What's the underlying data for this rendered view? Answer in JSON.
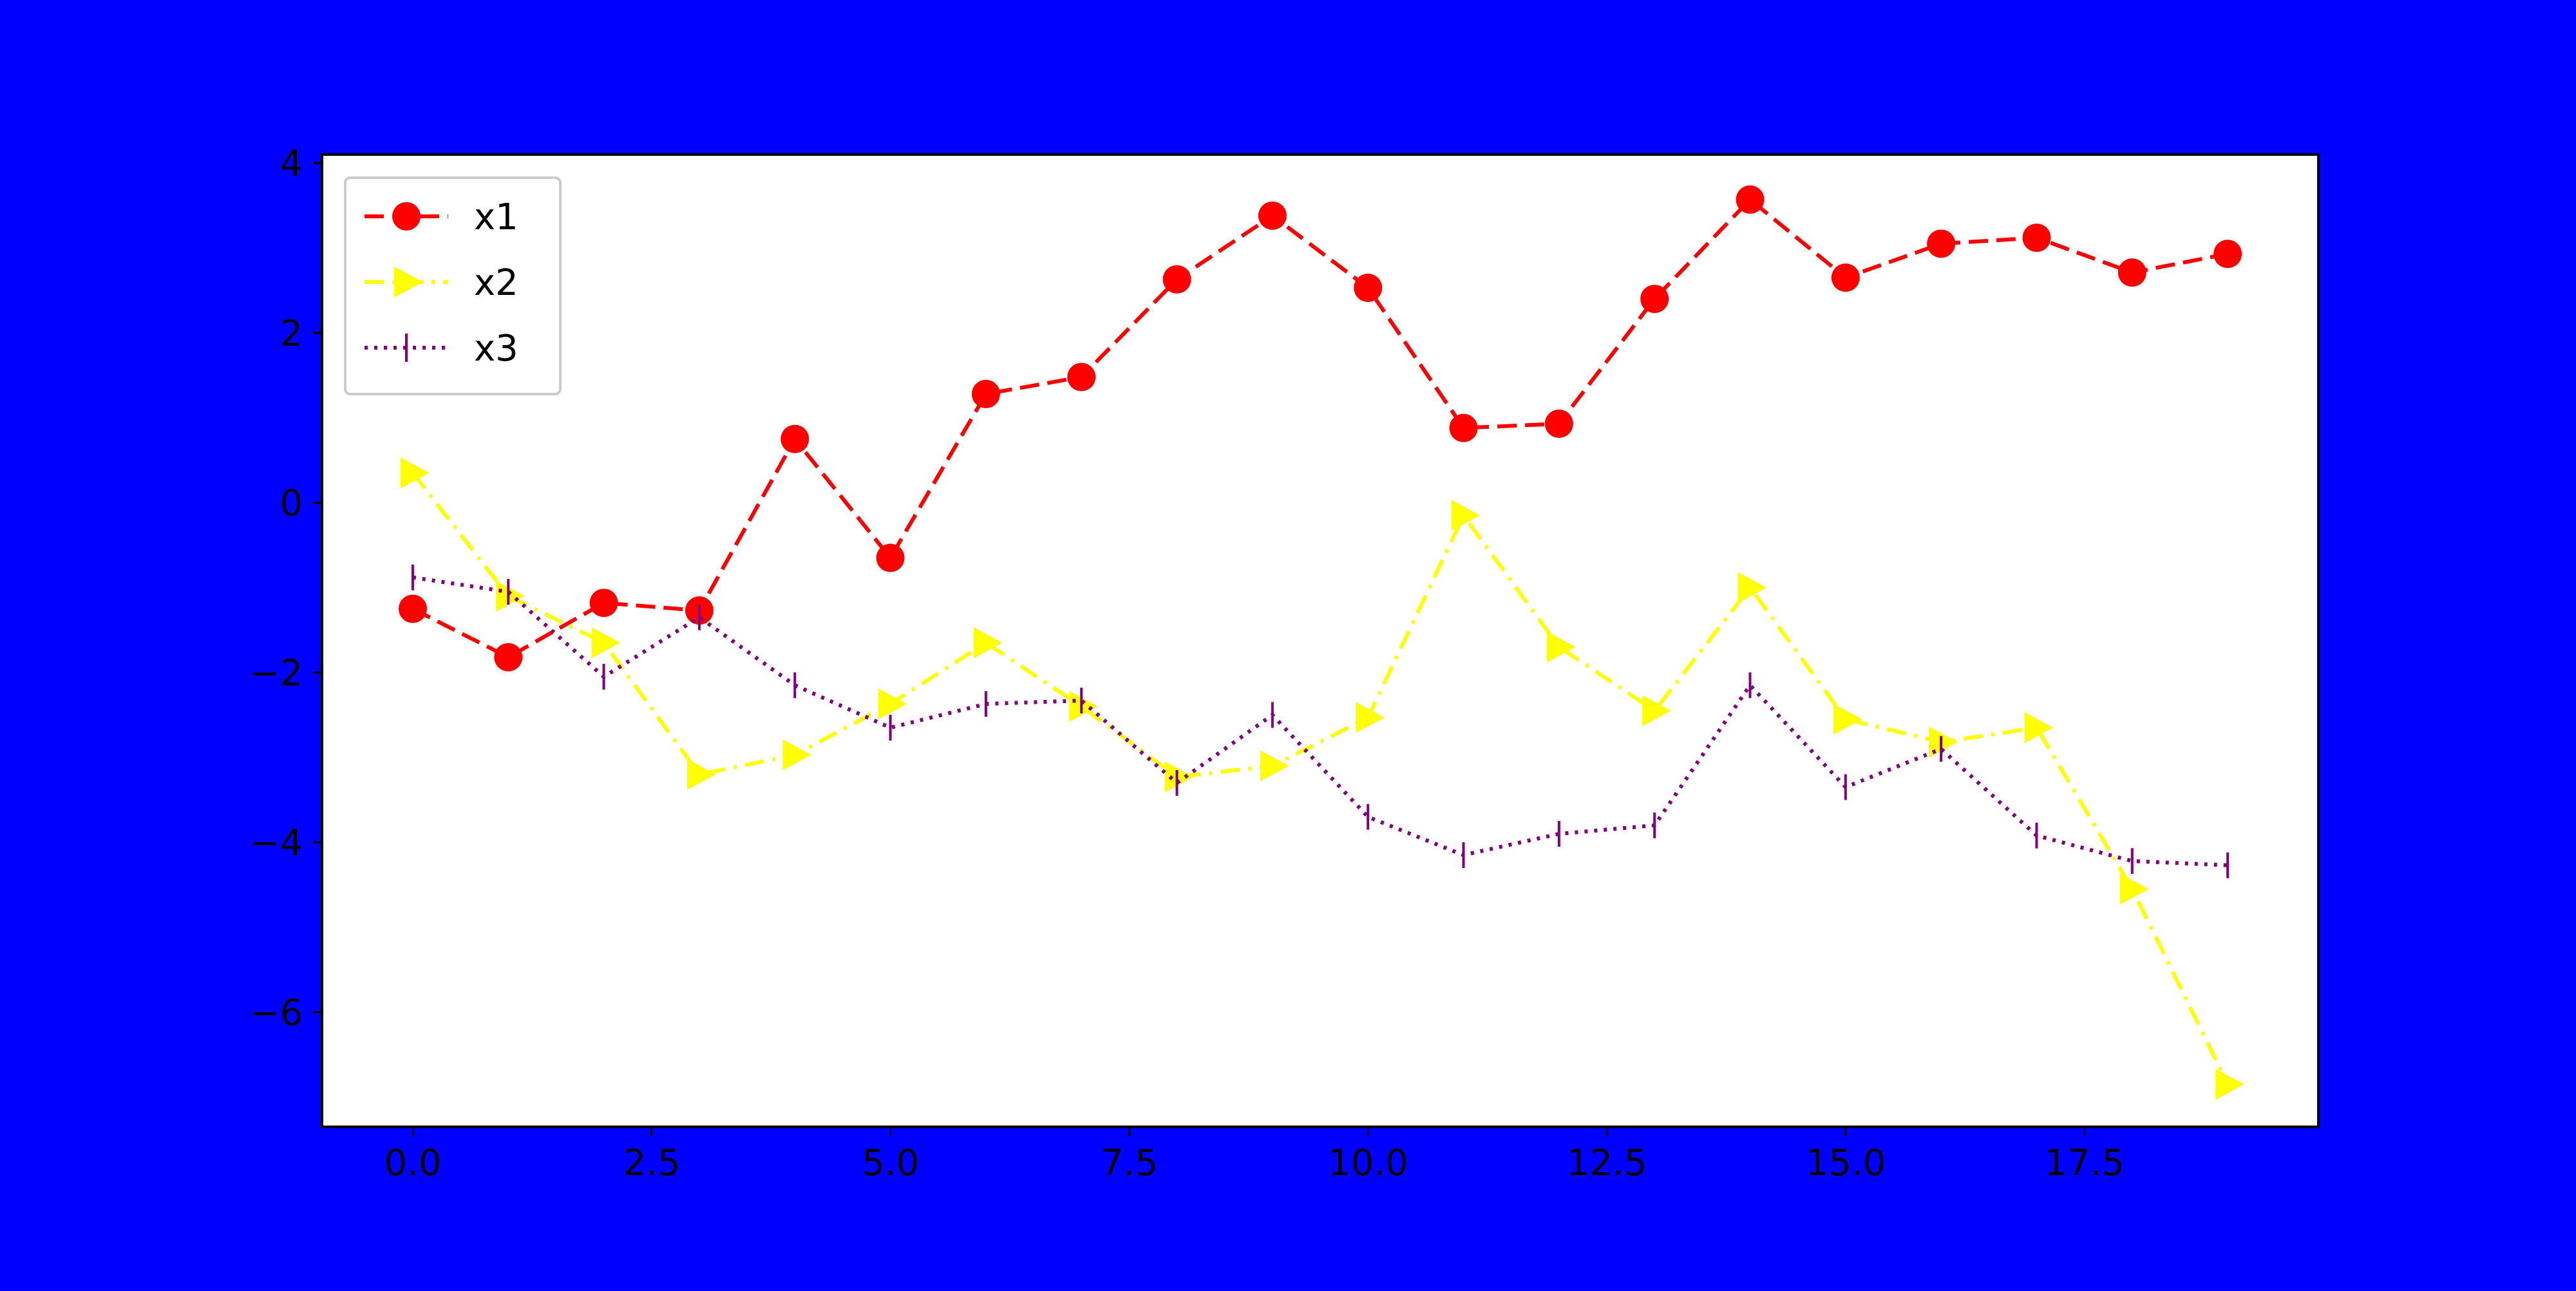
{
  "page": {
    "background_color": "#0000ff"
  },
  "chart_data": {
    "type": "line",
    "title": "",
    "xlabel": "",
    "ylabel": "",
    "xlim": [
      -0.95,
      19.95
    ],
    "ylim": [
      -7.35,
      4.1
    ],
    "x_ticks": [
      0.0,
      2.5,
      5.0,
      7.5,
      10.0,
      12.5,
      15.0,
      17.5
    ],
    "x_tick_labels": [
      "0.0",
      "2.5",
      "5.0",
      "7.5",
      "10.0",
      "12.5",
      "15.0",
      "17.5"
    ],
    "y_ticks": [
      4,
      2,
      0,
      -2,
      -4,
      -6
    ],
    "y_tick_labels": [
      "4",
      "2",
      "0",
      "−2",
      "−4",
      "−6"
    ],
    "grid": false,
    "legend_position": "top-left",
    "plot_background": "#ffffff",
    "x": [
      0,
      1,
      2,
      3,
      4,
      5,
      6,
      7,
      8,
      9,
      10,
      11,
      12,
      13,
      14,
      15,
      16,
      17,
      18,
      19
    ],
    "series": [
      {
        "name": "x1",
        "color": "#ff0000",
        "line_style": "dashed",
        "marker": "circle",
        "values": [
          -1.25,
          -1.82,
          -1.18,
          -1.27,
          0.75,
          -0.65,
          1.28,
          1.48,
          2.63,
          3.38,
          2.53,
          0.88,
          0.93,
          2.4,
          3.57,
          2.65,
          3.05,
          3.12,
          2.71,
          2.93
        ]
      },
      {
        "name": "x2",
        "color": "#ffff00",
        "line_style": "dashdot",
        "marker": "triangle-right",
        "values": [
          0.35,
          -1.1,
          -1.65,
          -3.2,
          -2.97,
          -2.37,
          -1.65,
          -2.4,
          -3.23,
          -3.1,
          -2.53,
          -0.15,
          -1.7,
          -2.45,
          -1.0,
          -2.55,
          -2.82,
          -2.65,
          -4.55,
          -6.85
        ]
      },
      {
        "name": "x3",
        "color": "#800080",
        "line_style": "dotted",
        "marker": "vline",
        "values": [
          -0.88,
          -1.05,
          -2.05,
          -1.35,
          -2.15,
          -2.65,
          -2.37,
          -2.33,
          -3.3,
          -2.5,
          -3.7,
          -4.15,
          -3.9,
          -3.8,
          -2.15,
          -3.35,
          -2.9,
          -3.92,
          -4.22,
          -4.27
        ]
      }
    ]
  }
}
